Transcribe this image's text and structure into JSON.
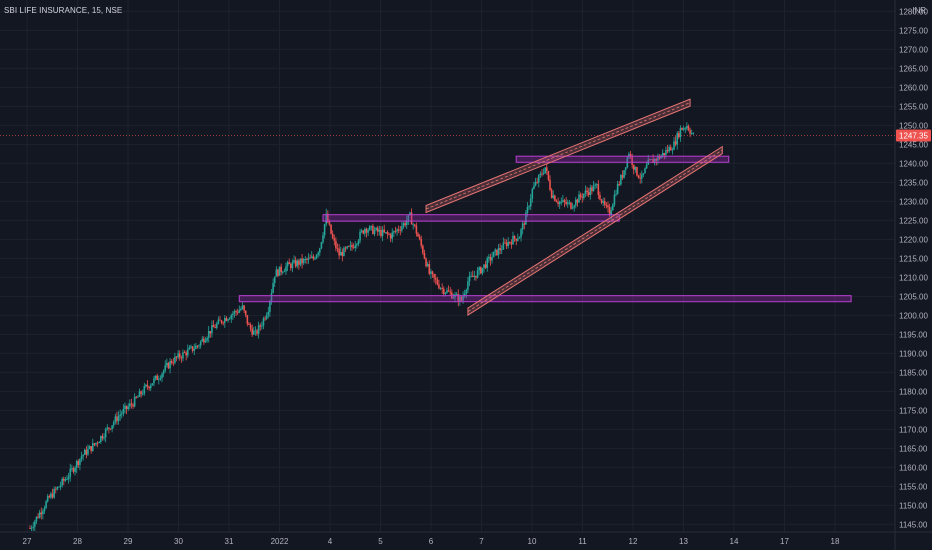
{
  "header": {
    "symbol": "SBI LIFE INSURANCE",
    "interval": "15",
    "exchange": "NSE",
    "currency": "INR"
  },
  "colors": {
    "background": "#131722",
    "grid": "#1e222d",
    "up": "#26a69a",
    "down": "#ef5350",
    "zone_fill": "#9c27b0",
    "zone_stroke": "#b83fd1",
    "channel": "#e57373",
    "price_tag": "#ef5350"
  },
  "chart_data": {
    "type": "candlestick",
    "title": "SBI LIFE INSURANCE, 15, NSE",
    "ylabel": "INR",
    "ylim": [
      1143,
      1283
    ],
    "y_ticks": [
      1145,
      1150,
      1155,
      1160,
      1165,
      1170,
      1175,
      1180,
      1185,
      1190,
      1195,
      1200,
      1205,
      1210,
      1215,
      1220,
      1225,
      1230,
      1235,
      1240,
      1245,
      1250,
      1255,
      1260,
      1265,
      1270,
      1275,
      1280
    ],
    "x_tick_labels": [
      "27",
      "28",
      "29",
      "30",
      "31",
      "2022",
      "4",
      "5",
      "6",
      "7",
      "10",
      "11",
      "12",
      "13",
      "14",
      "17",
      "18"
    ],
    "last_price": 1247.35,
    "price_path": [
      [
        0,
        1144
      ],
      [
        3,
        1152
      ],
      [
        6,
        1158
      ],
      [
        8,
        1163
      ],
      [
        10,
        1166
      ],
      [
        12,
        1170
      ],
      [
        14,
        1174
      ],
      [
        16,
        1177
      ],
      [
        18,
        1181
      ],
      [
        20,
        1184
      ],
      [
        22,
        1188
      ],
      [
        24,
        1190
      ],
      [
        26,
        1192
      ],
      [
        28,
        1196
      ],
      [
        30,
        1199
      ],
      [
        32,
        1201
      ],
      [
        33,
        1202
      ],
      [
        34,
        1197
      ],
      [
        35,
        1195
      ],
      [
        36,
        1198
      ],
      [
        37,
        1202
      ],
      [
        38,
        1211
      ],
      [
        40,
        1213
      ],
      [
        42,
        1214
      ],
      [
        44,
        1215
      ],
      [
        45,
        1218
      ],
      [
        46,
        1226
      ],
      [
        47,
        1220
      ],
      [
        48,
        1216
      ],
      [
        50,
        1218
      ],
      [
        52,
        1223
      ],
      [
        54,
        1222
      ],
      [
        56,
        1221
      ],
      [
        58,
        1224
      ],
      [
        59,
        1226
      ],
      [
        60,
        1222
      ],
      [
        61,
        1217
      ],
      [
        62,
        1211
      ],
      [
        64,
        1207
      ],
      [
        66,
        1205
      ],
      [
        67,
        1204
      ],
      [
        68,
        1209
      ],
      [
        70,
        1212
      ],
      [
        72,
        1216
      ],
      [
        74,
        1219
      ],
      [
        76,
        1221
      ],
      [
        77,
        1226
      ],
      [
        78,
        1233
      ],
      [
        79,
        1236
      ],
      [
        80,
        1239
      ],
      [
        81,
        1232
      ],
      [
        82,
        1230
      ],
      [
        84,
        1229
      ],
      [
        86,
        1232
      ],
      [
        88,
        1234
      ],
      [
        89,
        1229
      ],
      [
        90,
        1227
      ],
      [
        91,
        1233
      ],
      [
        92,
        1237
      ],
      [
        93,
        1243
      ],
      [
        94,
        1238
      ],
      [
        95,
        1236
      ],
      [
        96,
        1240
      ],
      [
        98,
        1242
      ],
      [
        100,
        1245
      ],
      [
        101,
        1249
      ],
      [
        102,
        1250
      ],
      [
        103,
        1247.35
      ]
    ],
    "annotations": {
      "horizontal_zones": [
        {
          "name": "support-zone-1205",
          "y_low": 1203.6,
          "y_high": 1205.2,
          "x_start_bar": 32.5,
          "x_end_bar": 127.5
        },
        {
          "name": "resistance-zone-1226",
          "y_low": 1224.8,
          "y_high": 1226.5,
          "x_start_bar": 45.5,
          "x_end_bar": 91.5
        },
        {
          "name": "resistance-zone-1241",
          "y_low": 1240.3,
          "y_high": 1241.9,
          "x_start_bar": 75.5,
          "x_end_bar": 108.5
        }
      ],
      "rising_wedge": {
        "upper_line": {
          "from": {
            "bar": 61.5,
            "price": 1228
          },
          "to": {
            "bar": 102.5,
            "price": 1256
          }
        },
        "lower_line": {
          "from": {
            "bar": 68,
            "price": 1201
          },
          "to": {
            "bar": 107.5,
            "price": 1243.5
          }
        }
      }
    }
  }
}
